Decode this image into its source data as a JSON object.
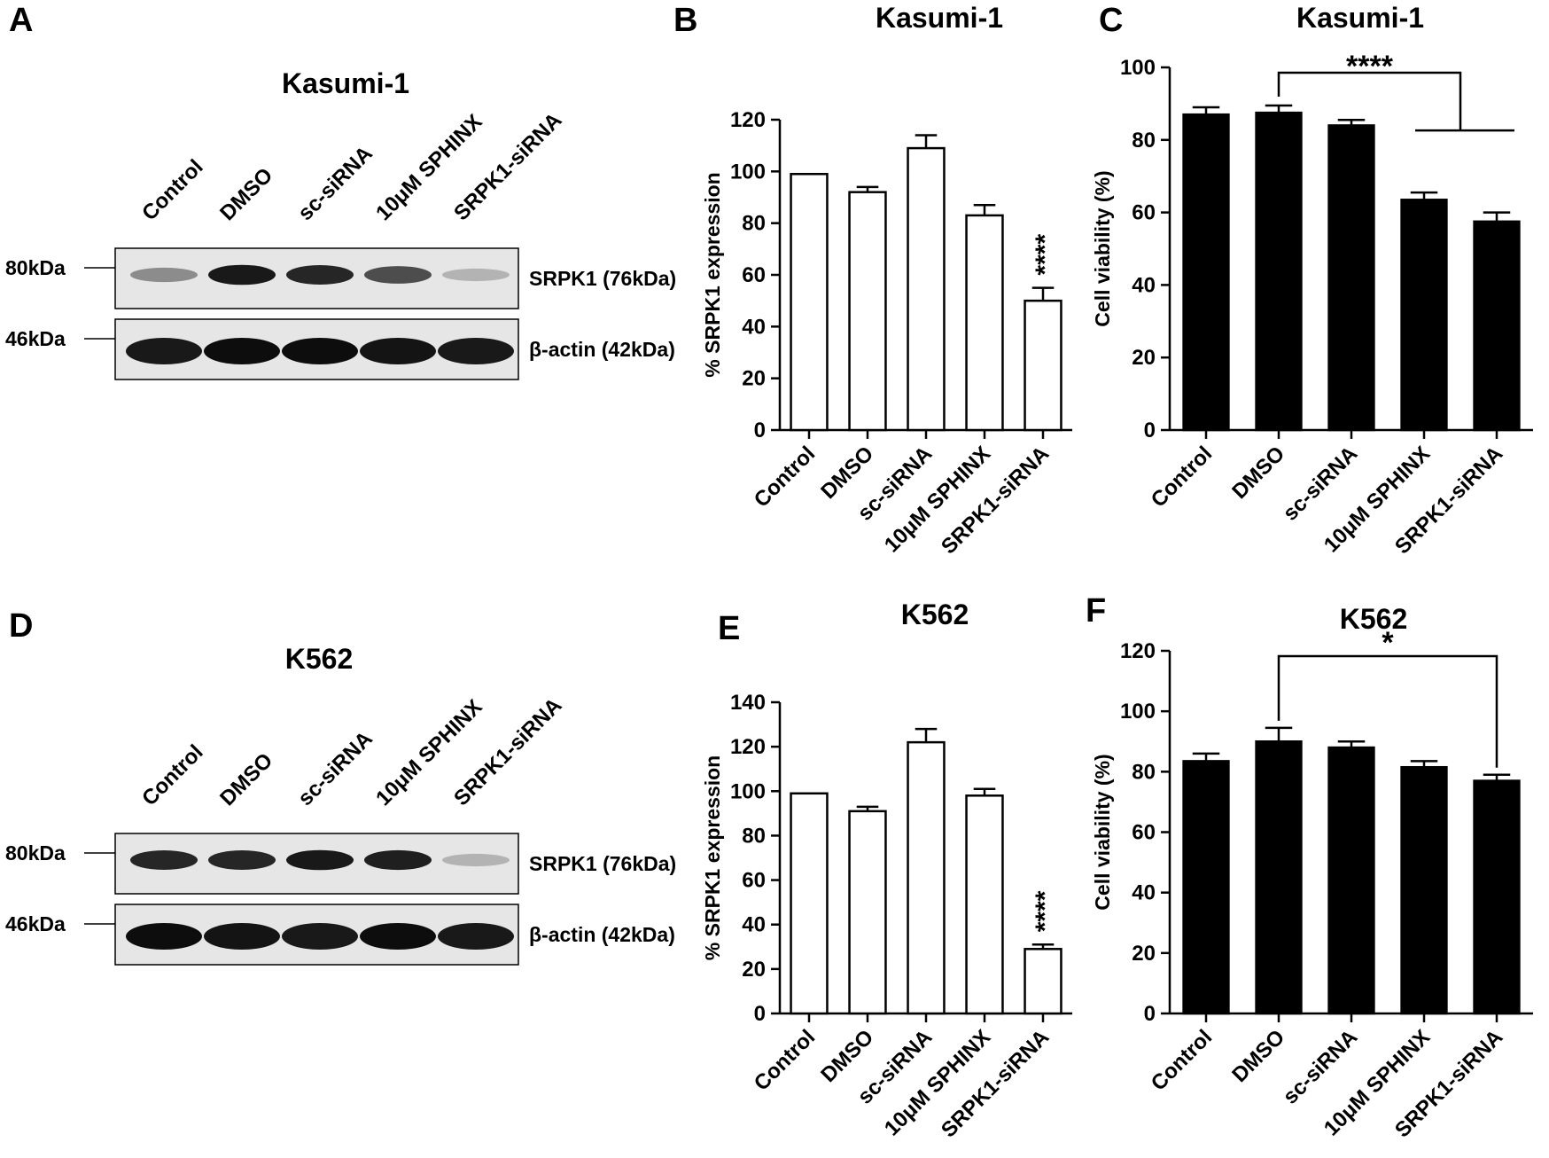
{
  "panels": {
    "A": "A",
    "B": "B",
    "C": "C",
    "D": "D",
    "E": "E",
    "F": "F"
  },
  "blots": [
    {
      "title": "Kasumi-1",
      "lanes": [
        "Control",
        "DMSO",
        "sc-siRNA",
        "10μM SPHINX",
        "SRPK1-siRNA"
      ],
      "markers": [
        "80kDa",
        "46kDa"
      ],
      "bands": [
        "SRPK1 (76kDa)",
        "β-actin (42kDa)"
      ],
      "srpk1_intensity": [
        0.45,
        0.9,
        0.85,
        0.7,
        0.3
      ],
      "actin_intensity": [
        0.9,
        0.95,
        0.95,
        0.92,
        0.9
      ]
    },
    {
      "title": "K562",
      "lanes": [
        "Control",
        "DMSO",
        "sc-siRNA",
        "10μM SPHINX",
        "SRPK1-siRNA"
      ],
      "markers": [
        "80kDa",
        "46kDa"
      ],
      "bands": [
        "SRPK1 (76kDa)",
        "β-actin (42kDa)"
      ],
      "srpk1_intensity": [
        0.85,
        0.85,
        0.9,
        0.88,
        0.3
      ],
      "actin_intensity": [
        0.95,
        0.92,
        0.9,
        0.95,
        0.9
      ]
    }
  ],
  "chart_data": [
    {
      "panel": "B",
      "type": "bar",
      "title": "Kasumi-1",
      "ylabel": "% SRPK1 expression",
      "ylim": [
        0,
        120
      ],
      "yticks": [
        0,
        20,
        40,
        60,
        80,
        100,
        120
      ],
      "fill": "#ffffff",
      "categories": [
        "Control",
        "DMSO",
        "sc-siRNA",
        "10μM SPHINX",
        "SRPK1-siRNA"
      ],
      "values": [
        99,
        92,
        109,
        83,
        50
      ],
      "errors": [
        0,
        2,
        5,
        4,
        5
      ],
      "annotations": [
        {
          "category": "SRPK1-siRNA",
          "text": "****"
        }
      ]
    },
    {
      "panel": "C",
      "type": "bar",
      "title": "Kasumi-1",
      "ylabel": "Cell viability (%)",
      "ylim": [
        0,
        100
      ],
      "yticks": [
        0,
        20,
        40,
        60,
        80,
        100
      ],
      "fill": "#000000",
      "categories": [
        "Control",
        "DMSO",
        "sc-siRNA",
        "10μM SPHINX",
        "SRPK1-siRNA"
      ],
      "values": [
        87,
        87.5,
        84,
        63.5,
        57.5
      ],
      "errors": [
        2,
        2,
        1.5,
        2,
        2.5
      ],
      "bracket": {
        "from": "DMSO",
        "to_group": [
          "10μM SPHINX",
          "SRPK1-siRNA"
        ],
        "text": "****"
      }
    },
    {
      "panel": "E",
      "type": "bar",
      "title": "K562",
      "ylabel": "% SRPK1 expression",
      "ylim": [
        0,
        140
      ],
      "yticks": [
        0,
        20,
        40,
        60,
        80,
        100,
        120,
        140
      ],
      "fill": "#ffffff",
      "categories": [
        "Control",
        "DMSO",
        "sc-siRNA",
        "10μM SPHINX",
        "SRPK1-siRNA"
      ],
      "values": [
        99,
        91,
        122,
        98,
        29
      ],
      "errors": [
        0,
        2,
        6,
        3,
        2
      ],
      "annotations": [
        {
          "category": "SRPK1-siRNA",
          "text": "****"
        }
      ]
    },
    {
      "panel": "F",
      "type": "bar",
      "title": "K562",
      "ylabel": "Cell viability (%)",
      "ylim": [
        0,
        120
      ],
      "yticks": [
        0,
        20,
        40,
        60,
        80,
        100,
        120
      ],
      "fill": "#000000",
      "categories": [
        "Control",
        "DMSO",
        "sc-siRNA",
        "10μM SPHINX",
        "SRPK1-siRNA"
      ],
      "values": [
        83.5,
        90,
        88,
        81.5,
        77
      ],
      "errors": [
        2.5,
        4.5,
        2,
        2,
        2
      ],
      "bracket": {
        "from": "DMSO",
        "to": "SRPK1-siRNA",
        "text": "*"
      }
    }
  ]
}
